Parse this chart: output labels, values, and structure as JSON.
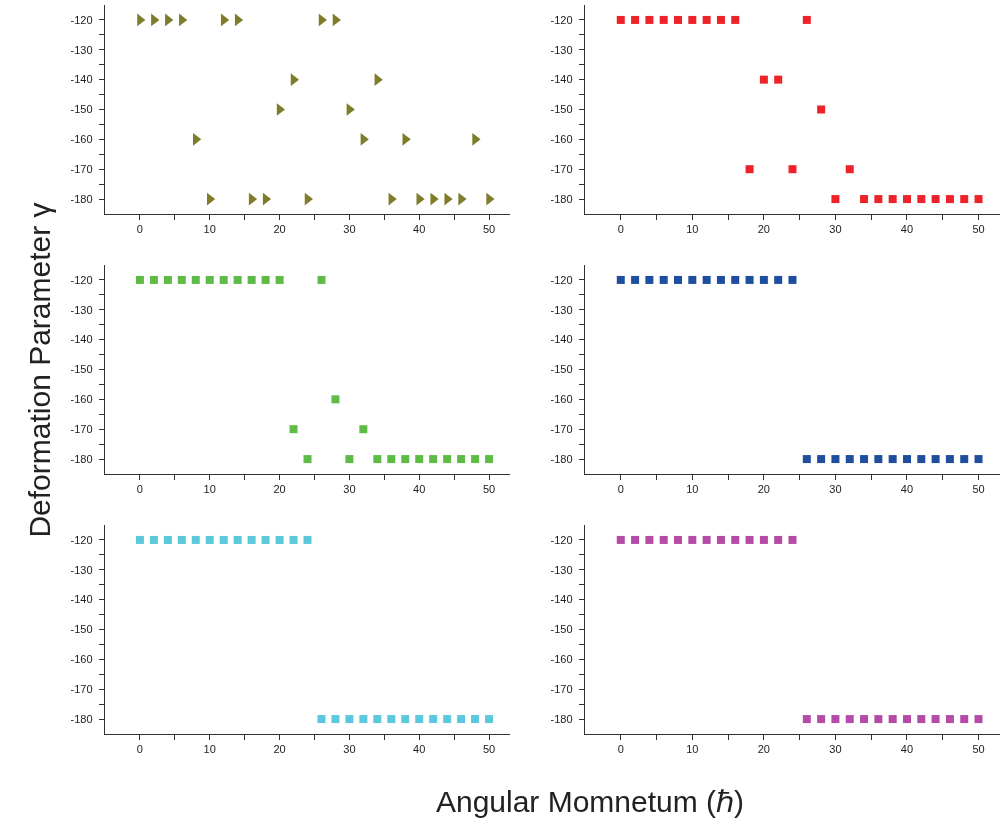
{
  "chart_data": [
    {
      "type": "scatter",
      "xlabel": "Angular Momnetum (ℏ)",
      "ylabel": "Deformation Parameter γ",
      "marker": "triangle",
      "x": [
        0,
        2,
        4,
        6,
        8,
        10,
        12,
        14,
        16,
        18,
        20,
        22,
        24,
        26,
        28,
        30,
        32,
        34,
        36,
        38,
        40,
        42,
        44,
        46,
        48,
        50
      ],
      "series": [
        {
          "color": "#7f7d2c",
          "values": [
            -120,
            -120,
            -120,
            -120,
            -160,
            -180,
            -120,
            -120,
            -180,
            -180,
            -150,
            -140,
            -180,
            -120,
            -120,
            -150,
            -160,
            -140,
            -180,
            -160,
            -180,
            -180,
            -180,
            -180,
            -160,
            -180
          ]
        }
      ],
      "xlim": [
        -5,
        53
      ],
      "xticks": [
        0,
        {
          "value": 5,
          "label": null
        },
        10,
        {
          "value": 15,
          "label": null
        },
        20,
        {
          "value": 25,
          "label": null
        },
        30,
        {
          "value": 35,
          "label": null
        },
        40,
        {
          "value": 45,
          "label": null
        },
        50
      ],
      "ylim": [
        -185,
        -115
      ],
      "yticks": [
        -120,
        {
          "value": -125,
          "label": null
        },
        -130,
        {
          "value": -135,
          "label": null
        },
        -140,
        {
          "value": -145,
          "label": null
        },
        -150,
        {
          "value": -155,
          "label": null
        },
        -160,
        {
          "value": -165,
          "label": null
        },
        -170,
        {
          "value": -175,
          "label": null
        },
        -180
      ]
    },
    {
      "type": "scatter",
      "marker": "square",
      "x": [
        0,
        2,
        4,
        6,
        8,
        10,
        12,
        14,
        16,
        18,
        20,
        22,
        24,
        26,
        28,
        30,
        32,
        34,
        36,
        38,
        40,
        42,
        44,
        46,
        48,
        50
      ],
      "series": [
        {
          "color": "#ee2229",
          "values": [
            -120,
            -120,
            -120,
            -120,
            -120,
            -120,
            -120,
            -120,
            -120,
            -170,
            -140,
            -140,
            -170,
            -120,
            -150,
            -180,
            -170,
            -180,
            -180,
            -180,
            -180,
            -180,
            -180,
            -180,
            -180,
            -180
          ]
        }
      ],
      "xlim": [
        -5,
        53
      ],
      "xticks": [
        0,
        {
          "value": 5,
          "label": null
        },
        10,
        {
          "value": 15,
          "label": null
        },
        20,
        {
          "value": 25,
          "label": null
        },
        30,
        {
          "value": 35,
          "label": null
        },
        40,
        {
          "value": 45,
          "label": null
        },
        50
      ],
      "ylim": [
        -185,
        -115
      ],
      "yticks": [
        -120,
        {
          "value": -125,
          "label": null
        },
        -130,
        {
          "value": -135,
          "label": null
        },
        -140,
        {
          "value": -145,
          "label": null
        },
        -150,
        {
          "value": -155,
          "label": null
        },
        -160,
        {
          "value": -165,
          "label": null
        },
        -170,
        {
          "value": -175,
          "label": null
        },
        -180
      ]
    },
    {
      "type": "scatter",
      "marker": "square",
      "x": [
        0,
        2,
        4,
        6,
        8,
        10,
        12,
        14,
        16,
        18,
        20,
        22,
        24,
        26,
        28,
        30,
        32,
        34,
        36,
        38,
        40,
        42,
        44,
        46,
        48,
        50
      ],
      "series": [
        {
          "color": "#5dbb46",
          "values": [
            -120,
            -120,
            -120,
            -120,
            -120,
            -120,
            -120,
            -120,
            -120,
            -120,
            -120,
            -170,
            -180,
            -120,
            -160,
            -180,
            -170,
            -180,
            -180,
            -180,
            -180,
            -180,
            -180,
            -180,
            -180,
            -180
          ]
        }
      ],
      "xlim": [
        -5,
        53
      ],
      "xticks": [
        0,
        {
          "value": 5,
          "label": null
        },
        10,
        {
          "value": 15,
          "label": null
        },
        20,
        {
          "value": 25,
          "label": null
        },
        30,
        {
          "value": 35,
          "label": null
        },
        40,
        {
          "value": 45,
          "label": null
        },
        50
      ],
      "ylim": [
        -185,
        -115
      ],
      "yticks": [
        -120,
        {
          "value": -125,
          "label": null
        },
        -130,
        {
          "value": -135,
          "label": null
        },
        -140,
        {
          "value": -145,
          "label": null
        },
        -150,
        {
          "value": -155,
          "label": null
        },
        -160,
        {
          "value": -165,
          "label": null
        },
        -170,
        {
          "value": -175,
          "label": null
        },
        -180
      ]
    },
    {
      "type": "scatter",
      "marker": "square",
      "x": [
        0,
        2,
        4,
        6,
        8,
        10,
        12,
        14,
        16,
        18,
        20,
        22,
        24,
        26,
        28,
        30,
        32,
        34,
        36,
        38,
        40,
        42,
        44,
        46,
        48,
        50
      ],
      "series": [
        {
          "color": "#1f4e9e",
          "values": [
            -120,
            -120,
            -120,
            -120,
            -120,
            -120,
            -120,
            -120,
            -120,
            -120,
            -120,
            -120,
            -120,
            -180,
            -180,
            -180,
            -180,
            -180,
            -180,
            -180,
            -180,
            -180,
            -180,
            -180,
            -180,
            -180
          ]
        }
      ],
      "xlim": [
        -5,
        53
      ],
      "xticks": [
        0,
        {
          "value": 5,
          "label": null
        },
        10,
        {
          "value": 15,
          "label": null
        },
        20,
        {
          "value": 25,
          "label": null
        },
        30,
        {
          "value": 35,
          "label": null
        },
        40,
        {
          "value": 45,
          "label": null
        },
        50
      ],
      "ylim": [
        -185,
        -115
      ],
      "yticks": [
        -120,
        {
          "value": -125,
          "label": null
        },
        -130,
        {
          "value": -135,
          "label": null
        },
        -140,
        {
          "value": -145,
          "label": null
        },
        -150,
        {
          "value": -155,
          "label": null
        },
        -160,
        {
          "value": -165,
          "label": null
        },
        -170,
        {
          "value": -175,
          "label": null
        },
        -180
      ]
    },
    {
      "type": "scatter",
      "marker": "square",
      "x": [
        0,
        2,
        4,
        6,
        8,
        10,
        12,
        14,
        16,
        18,
        20,
        22,
        24,
        26,
        28,
        30,
        32,
        34,
        36,
        38,
        40,
        42,
        44,
        46,
        48,
        50
      ],
      "series": [
        {
          "color": "#5bc8dc",
          "values": [
            -120,
            -120,
            -120,
            -120,
            -120,
            -120,
            -120,
            -120,
            -120,
            -120,
            -120,
            -120,
            -120,
            -180,
            -180,
            -180,
            -180,
            -180,
            -180,
            -180,
            -180,
            -180,
            -180,
            -180,
            -180,
            -180
          ]
        }
      ],
      "xlim": [
        -5,
        53
      ],
      "xticks": [
        0,
        {
          "value": 5,
          "label": null
        },
        10,
        {
          "value": 15,
          "label": null
        },
        20,
        {
          "value": 25,
          "label": null
        },
        30,
        {
          "value": 35,
          "label": null
        },
        40,
        {
          "value": 45,
          "label": null
        },
        50
      ],
      "ylim": [
        -185,
        -115
      ],
      "yticks": [
        -120,
        {
          "value": -125,
          "label": null
        },
        -130,
        {
          "value": -135,
          "label": null
        },
        -140,
        {
          "value": -145,
          "label": null
        },
        -150,
        {
          "value": -155,
          "label": null
        },
        -160,
        {
          "value": -165,
          "label": null
        },
        -170,
        {
          "value": -175,
          "label": null
        },
        -180
      ]
    },
    {
      "type": "scatter",
      "marker": "square",
      "x": [
        0,
        2,
        4,
        6,
        8,
        10,
        12,
        14,
        16,
        18,
        20,
        22,
        24,
        26,
        28,
        30,
        32,
        34,
        36,
        38,
        40,
        42,
        44,
        46,
        48,
        50
      ],
      "series": [
        {
          "color": "#b44ba6",
          "values": [
            -120,
            -120,
            -120,
            -120,
            -120,
            -120,
            -120,
            -120,
            -120,
            -120,
            -120,
            -120,
            -120,
            -180,
            -180,
            -180,
            -180,
            -180,
            -180,
            -180,
            -180,
            -180,
            -180,
            -180,
            -180,
            -180
          ]
        }
      ],
      "xlim": [
        -5,
        53
      ],
      "xticks": [
        0,
        {
          "value": 5,
          "label": null
        },
        10,
        {
          "value": 15,
          "label": null
        },
        20,
        {
          "value": 25,
          "label": null
        },
        30,
        {
          "value": 35,
          "label": null
        },
        40,
        {
          "value": 45,
          "label": null
        },
        50
      ],
      "ylim": [
        -185,
        -115
      ],
      "yticks": [
        -120,
        {
          "value": -125,
          "label": null
        },
        -130,
        {
          "value": -135,
          "label": null
        },
        -140,
        {
          "value": -145,
          "label": null
        },
        -150,
        {
          "value": -155,
          "label": null
        },
        -160,
        {
          "value": -165,
          "label": null
        },
        -170,
        {
          "value": -175,
          "label": null
        },
        -180
      ]
    }
  ]
}
